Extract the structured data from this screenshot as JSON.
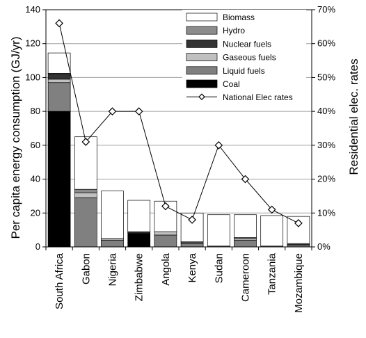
{
  "chart_data": {
    "type": "bar",
    "stacked": true,
    "categories": [
      "South Africa",
      "Gabon",
      "Nigeria",
      "Zimbabwe",
      "Angola",
      "Kenya",
      "Sudan",
      "Cameroon",
      "Tanzania",
      "Mozambique"
    ],
    "ylabel": "Per capita energy consumption (GJ/yr)",
    "y2label": "Residential elec. rates",
    "ylim": [
      0,
      140
    ],
    "yticks": [
      "0",
      "20",
      "40",
      "60",
      "80",
      "100",
      "120",
      "140"
    ],
    "y2lim": [
      0,
      70
    ],
    "y2ticks": [
      "0%",
      "10%",
      "20%",
      "30%",
      "40%",
      "50%",
      "60%",
      "70%"
    ],
    "grid": true,
    "legend_position": "top-right",
    "series": [
      {
        "name": "Coal",
        "color": "#000000",
        "values": [
          80,
          0,
          0,
          8,
          0,
          0,
          0,
          0,
          0,
          0
        ]
      },
      {
        "name": "Liquid fuels",
        "color": "#808080",
        "values": [
          17,
          29,
          4,
          0.5,
          7,
          2,
          0.5,
          4,
          0.5,
          1
        ]
      },
      {
        "name": "Gaseous fuels",
        "color": "#c0c0c0",
        "values": [
          2,
          3,
          1,
          0,
          2,
          0.5,
          0,
          1,
          0,
          0.5
        ]
      },
      {
        "name": "Nuclear fuels",
        "color": "#333333",
        "values": [
          3,
          0,
          0,
          0,
          0,
          0,
          0,
          0,
          0,
          0
        ]
      },
      {
        "name": "Hydro",
        "color": "#8c8c8c",
        "values": [
          0.5,
          2,
          0,
          0.5,
          0,
          0.5,
          0,
          0.5,
          0,
          0.5
        ]
      },
      {
        "name": "Biomass",
        "color": "#ffffff",
        "values": [
          12,
          31,
          28,
          18.5,
          18,
          17,
          18.5,
          13.5,
          18,
          16
        ]
      }
    ],
    "line_series": {
      "name": "National Elec rates",
      "axis": "right",
      "values": [
        66,
        31,
        40,
        40,
        12,
        8,
        30,
        20,
        11,
        7
      ]
    }
  }
}
